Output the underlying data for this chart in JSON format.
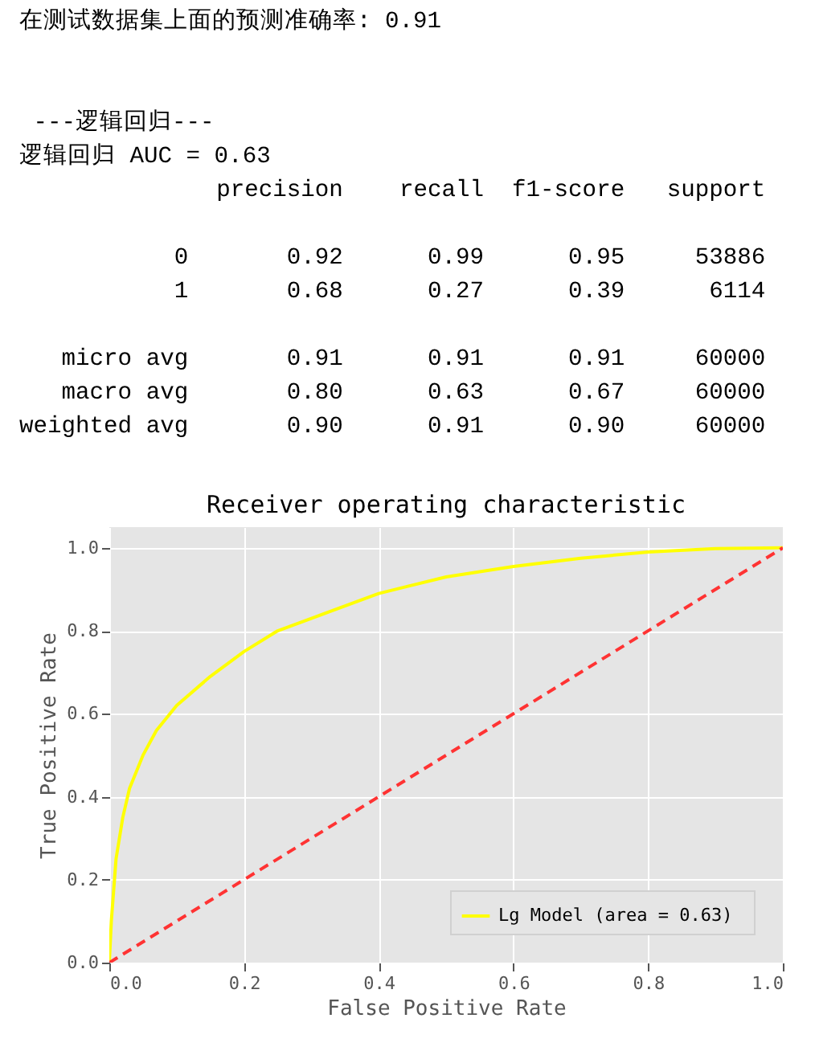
{
  "chart_data": {
    "type": "line",
    "title": "Receiver operating characteristic",
    "xlabel": "False Positive Rate",
    "ylabel": "True Positive Rate",
    "annotations": [
      "在测试数据集上面的预测准确率: 0.91",
      " ---逻辑回归---",
      "逻辑回归 AUC = 0.63",
      "              precision    recall  f1-score   support",
      "           0       0.92      0.99      0.95     53886",
      "           1       0.68      0.27      0.39      6114",
      "   micro avg       0.91      0.91      0.91     60000",
      "   macro avg       0.80      0.63      0.67     60000",
      "weighted avg       0.90      0.91      0.90     60000"
    ],
    "xlim": [
      0,
      1
    ],
    "ylim": [
      0,
      1.05
    ],
    "xticks": [
      {
        "value": 0,
        "label": "0.0"
      },
      {
        "value": 0.2,
        "label": "0.2"
      },
      {
        "value": 0.4,
        "label": "0.4"
      },
      {
        "value": 0.6,
        "label": "0.6"
      },
      {
        "value": 0.8,
        "label": "0.8"
      },
      {
        "value": 1,
        "label": "1.0"
      }
    ],
    "yticks": [
      {
        "value": 0,
        "label": "0.0"
      },
      {
        "value": 0.2,
        "label": "0.2"
      },
      {
        "value": 0.4,
        "label": "0.4"
      },
      {
        "value": 0.6,
        "label": "0.6"
      },
      {
        "value": 0.8,
        "label": "0.8"
      },
      {
        "value": 1,
        "label": "1.0"
      }
    ],
    "grid": true,
    "legend": "bottom right",
    "series": [
      {
        "name": "Lg Model  (area = 0.63)",
        "color": "#ffff00",
        "line_style": "solid",
        "x": [
          0,
          0.003,
          0.01,
          0.02,
          0.03,
          0.05,
          0.07,
          0.1,
          0.15,
          0.2,
          0.25,
          0.3,
          0.4,
          0.5,
          0.6,
          0.7,
          0.8,
          0.9,
          1
        ],
        "values": [
          0,
          0.1,
          0.25,
          0.35,
          0.42,
          0.5,
          0.56,
          0.62,
          0.69,
          0.75,
          0.8,
          0.83,
          0.89,
          0.93,
          0.955,
          0.975,
          0.99,
          0.998,
          1
        ]
      },
      {
        "color": "#ff3333",
        "line_style": "dashed",
        "x": [
          0,
          1
        ],
        "values": [
          0,
          1
        ]
      }
    ]
  }
}
